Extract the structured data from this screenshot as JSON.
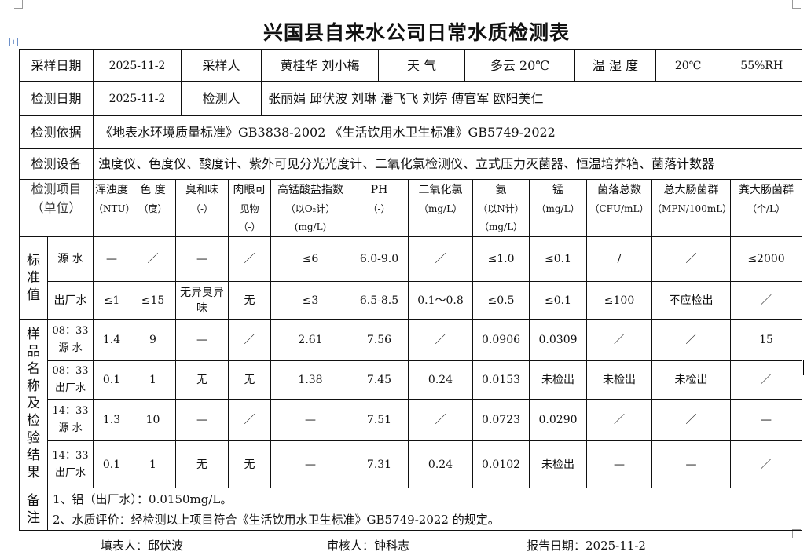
{
  "title": "兴国县自来水公司日常水质检测表",
  "info": {
    "sampling_date_label": "采样日期",
    "sampling_date": "2025-11-2",
    "sampler_label": "采样人",
    "sampler": "黄桂华 刘小梅",
    "weather_label": "天 气",
    "weather": "多云  20℃",
    "temp_humidity_label": "温 湿 度",
    "temperature": "20℃",
    "humidity": "55%RH",
    "test_date_label": "检测日期",
    "test_date": "2025-11-2",
    "tester_label": "检测人",
    "testers": "张丽娟 邱伏波 刘琳 潘飞飞 刘婷 傅官军 欧阳美仁",
    "basis_label": "检测依据",
    "basis": "《地表水环境质量标准》GB3838-2002  《生活饮用水卫生标准》GB5749-2022",
    "equipment_label": "检测设备",
    "equipment": "浊度仪、色度仪、酸度计、紫外可见分光光度计、二氧化氯检测仪、立式压力灭菌器、恒温培养箱、菌落计数器"
  },
  "header": {
    "item_label": [
      "检测项目",
      "（单位）"
    ],
    "columns": [
      [
        "浑浊度",
        "（NTU）"
      ],
      [
        "色 度",
        "（度）"
      ],
      [
        "臭和味",
        "（-）"
      ],
      [
        "肉眼可",
        "见物",
        "（-）"
      ],
      [
        "高锰酸盐指数",
        "（以O₂计）",
        "(mg/L)"
      ],
      [
        "PH",
        "（-）"
      ],
      [
        "二氧化氯",
        "（mg/L）"
      ],
      [
        "氨",
        "（以N计）",
        "（mg/L）"
      ],
      [
        "锰",
        "（mg/L）"
      ],
      [
        "菌落总数",
        "（CFU/mL）"
      ],
      [
        "总大肠菌群",
        "（MPN/100mL）"
      ],
      [
        "粪大肠菌群",
        "（个/L）"
      ]
    ]
  },
  "standard": {
    "label": "标准值",
    "rows": [
      {
        "name": "源  水",
        "values": [
          "—",
          "／",
          "—",
          "／",
          "≤6",
          "6.0-9.0",
          "／",
          "≤1.0",
          "≤0.1",
          "/",
          "／",
          "≤2000"
        ]
      },
      {
        "name": "出厂水",
        "values": [
          "≤1",
          "≤15",
          "无异臭异味",
          "无",
          "≤3",
          "6.5-8.5",
          "0.1～0.8",
          "≤0.5",
          "≤0.1",
          "≤100",
          "不应检出",
          "／"
        ]
      }
    ]
  },
  "results": {
    "label": "样品名称及检验结果",
    "rows": [
      {
        "time": "08：33",
        "name": "源 水",
        "values": [
          "1.4",
          "9",
          "—",
          "／",
          "2.61",
          "7.56",
          "／",
          "0.0906",
          "0.0309",
          "／",
          "／",
          "15"
        ]
      },
      {
        "time": "08：33",
        "name": "出厂水",
        "values": [
          "0.1",
          "1",
          "无",
          "无",
          "1.38",
          "7.45",
          "0.24",
          "0.0153",
          "未检出",
          "未检出",
          "未检出",
          "／"
        ]
      },
      {
        "time": "14：33",
        "name": "源 水",
        "values": [
          "1.3",
          "10",
          "—",
          "／",
          "—",
          "7.51",
          "／",
          "0.0723",
          "0.0290",
          "／",
          "／",
          "—"
        ]
      },
      {
        "time": "14：33",
        "name": "出厂水",
        "values": [
          "0.1",
          "1",
          "无",
          "无",
          "—",
          "7.31",
          "0.24",
          "0.0102",
          "未检出",
          "—",
          "—",
          "／"
        ]
      }
    ]
  },
  "remarks": {
    "label": "备注",
    "lines": [
      "1、铝（出厂水）：0.0150mg/L。",
      "2、水质评价：经检测以上项目符合《生活饮用水卫生标准》GB5749-2022 的规定。"
    ]
  },
  "footer": {
    "filler": "填表人：邱伏波",
    "reviewer": "审核人：钟科志",
    "report_date": "报告日期：2025-11-2"
  }
}
